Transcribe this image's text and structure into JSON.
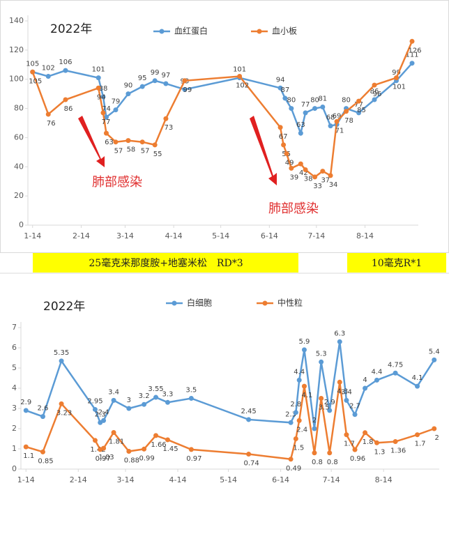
{
  "chart_data": [
    {
      "type": "line",
      "title": "2022年",
      "x": [
        0,
        10,
        21,
        42,
        45,
        47,
        53,
        61,
        70,
        78,
        85,
        97,
        132,
        158,
        161,
        165,
        171,
        174,
        180,
        185,
        190,
        194,
        200,
        208,
        218,
        232,
        242
      ],
      "series": [
        {
          "name": "血红蛋白",
          "color": "#5b9bd5",
          "x": [
            0,
            10,
            21,
            42,
            45,
            47,
            53,
            61,
            70,
            78,
            85,
            97,
            132,
            158,
            161,
            165,
            171,
            174,
            180,
            185,
            190,
            194,
            200,
            208,
            218,
            232,
            242
          ],
          "values": [
            105,
            102,
            106,
            101,
            88,
            74,
            79,
            90,
            95,
            99,
            97,
            93,
            101,
            94,
            87,
            80,
            63,
            77,
            80,
            81,
            68,
            69,
            80,
            77,
            86,
            99,
            111
          ]
        },
        {
          "name": "血小板",
          "color": "#ed7d31",
          "x": [
            0,
            10,
            21,
            42,
            45,
            47,
            53,
            61,
            70,
            78,
            85,
            97,
            132,
            158,
            160,
            162,
            165,
            171,
            174,
            180,
            185,
            190,
            194,
            200,
            208,
            218,
            232,
            242
          ],
          "values": [
            105,
            76,
            86,
            94,
            77,
            63,
            57,
            58,
            57,
            55,
            73,
            99,
            102,
            67,
            55,
            49,
            39,
            42,
            38,
            33,
            37,
            34,
            71,
            78,
            85,
            96,
            101,
            126
          ]
        }
      ],
      "xlim": [
        -3,
        246
      ],
      "xticks": [
        {
          "value": 0,
          "label": "1-14"
        },
        {
          "value": 31,
          "label": "2-14"
        },
        {
          "value": 59,
          "label": "3-14"
        },
        {
          "value": 90,
          "label": "4-14"
        },
        {
          "value": 120,
          "label": "5-14"
        },
        {
          "value": 151,
          "label": "6-14"
        },
        {
          "value": 181,
          "label": "7-14"
        },
        {
          "value": 212,
          "label": "8-14"
        }
      ],
      "ylim": [
        0,
        140
      ],
      "yticks": [
        0,
        20,
        40,
        60,
        80,
        100,
        120,
        140
      ],
      "grid": false,
      "annotations": [
        "肺部感染",
        "肺部感染"
      ]
    },
    {
      "type": "line",
      "title": "2022年",
      "series": [
        {
          "name": "白细胞",
          "color": "#5b9bd5",
          "x": [
            0,
            10,
            21,
            41,
            44,
            46,
            52,
            61,
            70,
            77,
            84,
            98,
            132,
            157,
            160,
            162,
            165,
            171,
            175,
            180,
            186,
            190,
            195,
            201,
            208,
            219,
            232,
            242
          ],
          "values": [
            2.9,
            2.6,
            5.35,
            2.95,
            2.3,
            2.4,
            3.4,
            3.0,
            3.2,
            3.55,
            3.3,
            3.5,
            2.45,
            2.3,
            2.8,
            4.4,
            5.9,
            2.0,
            5.3,
            2.9,
            6.3,
            3.4,
            2.7,
            4.0,
            4.4,
            4.75,
            4.1,
            5.4
          ]
        },
        {
          "name": "中性粒",
          "color": "#ed7d31",
          "x": [
            0,
            10,
            21,
            41,
            44,
            46,
            52,
            61,
            70,
            77,
            84,
            98,
            132,
            157,
            160,
            162,
            165,
            171,
            175,
            180,
            186,
            190,
            195,
            201,
            208,
            219,
            232,
            242
          ],
          "values": [
            1.1,
            0.85,
            3.23,
            1.42,
            0.97,
            1.03,
            1.81,
            0.88,
            0.99,
            1.66,
            1.45,
            0.97,
            0.74,
            0.49,
            1.5,
            2.4,
            4.1,
            0.8,
            3.5,
            0.8,
            4.3,
            1.7,
            0.96,
            1.8,
            1.3,
            1.36,
            1.7,
            2.0
          ]
        }
      ],
      "xlim": [
        -3,
        245
      ],
      "xticks": [
        {
          "value": 0,
          "label": "1-14"
        },
        {
          "value": 31,
          "label": "2-14"
        },
        {
          "value": 59,
          "label": "3-14"
        },
        {
          "value": 90,
          "label": "4-14"
        },
        {
          "value": 120,
          "label": "5-14"
        },
        {
          "value": 151,
          "label": "6-14"
        },
        {
          "value": 181,
          "label": "7-14"
        },
        {
          "value": 212,
          "label": "8-14"
        }
      ],
      "ylim": [
        0,
        7
      ],
      "yticks": [
        0,
        1,
        2,
        3,
        4,
        5,
        6,
        7
      ],
      "grid": false
    }
  ],
  "treatment_bands": [
    "25毫克来那度胺+地塞米松　RD*3",
    "10毫克R*1"
  ]
}
